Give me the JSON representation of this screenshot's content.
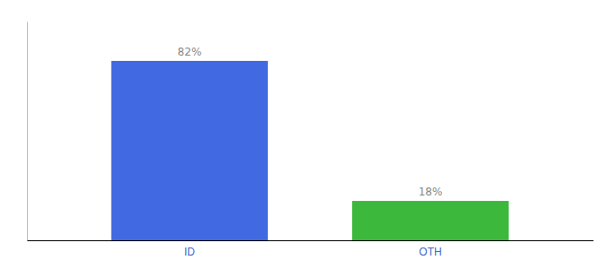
{
  "chart_data": {
    "type": "bar",
    "categories": [
      "ID",
      "OTH"
    ],
    "values": [
      82,
      18
    ],
    "value_labels": [
      "82%",
      "18%"
    ],
    "colors": [
      "#4169E1",
      "#3CB83C"
    ],
    "ylim": [
      0,
      100
    ],
    "data_labels": true,
    "tick_labels": "x"
  }
}
